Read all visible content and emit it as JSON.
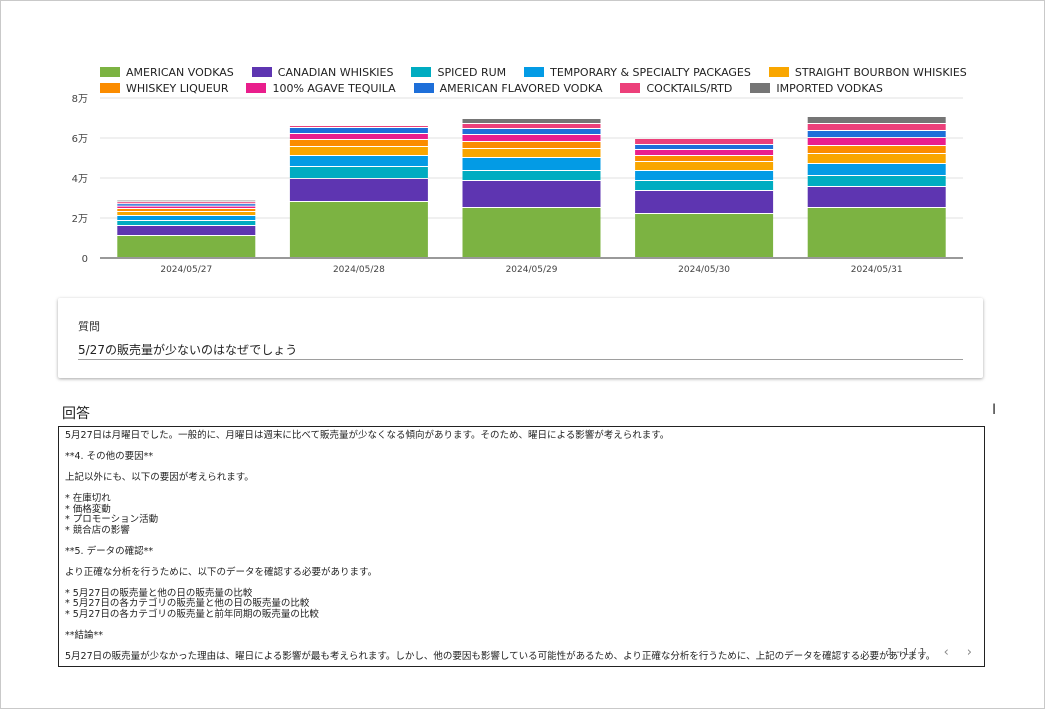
{
  "legend_rows": [
    [
      "AMERICAN VODKAS",
      "CANADIAN WHISKIES",
      "SPICED RUM",
      "TEMPORARY & SPECIALTY PACKAGES",
      "STRAIGHT BOURBON WHISKIES"
    ],
    [
      "WHISKEY LIQUEUR",
      "100% AGAVE TEQUILA",
      "AMERICAN FLAVORED VODKA",
      "COCKTAILS/RTD",
      "IMPORTED VODKAS"
    ]
  ],
  "chart_data": {
    "type": "bar",
    "stacked": true,
    "categories": [
      "2024/05/27",
      "2024/05/28",
      "2024/05/29",
      "2024/05/30",
      "2024/05/31"
    ],
    "ylim": [
      0,
      80000
    ],
    "yticks": [
      0,
      20000,
      40000,
      60000,
      80000
    ],
    "ytick_labels": [
      "0",
      "2万",
      "4万",
      "6万",
      "8万"
    ],
    "grid": true,
    "legend_position": "top",
    "series": [
      {
        "name": "AMERICAN VODKAS",
        "color": "#7cb342",
        "values": [
          11000,
          28000,
          25000,
          22000,
          25000
        ]
      },
      {
        "name": "CANADIAN WHISKIES",
        "color": "#5e35b1",
        "values": [
          5000,
          11500,
          13500,
          11500,
          10500
        ]
      },
      {
        "name": "SPICED RUM",
        "color": "#00acc1",
        "values": [
          2500,
          6000,
          5000,
          5000,
          5500
        ]
      },
      {
        "name": "TEMPORARY & SPECIALTY PACKAGES",
        "color": "#039be5",
        "values": [
          2500,
          5500,
          6500,
          5000,
          6000
        ]
      },
      {
        "name": "STRAIGHT BOURBON WHISKIES",
        "color": "#f9a600",
        "values": [
          2000,
          4500,
          4500,
          4500,
          5000
        ]
      },
      {
        "name": "WHISKEY LIQUEUR",
        "color": "#fb8c00",
        "values": [
          1500,
          3500,
          3500,
          3000,
          4000
        ]
      },
      {
        "name": "100% AGAVE TEQUILA",
        "color": "#e91e8c",
        "values": [
          1200,
          3000,
          3500,
          3000,
          4000
        ]
      },
      {
        "name": "AMERICAN FLAVORED VODKA",
        "color": "#1e6fd9",
        "values": [
          1200,
          3000,
          3000,
          2500,
          3500
        ]
      },
      {
        "name": "COCKTAILS/RTD",
        "color": "#ec407a",
        "values": [
          1000,
          1000,
          2500,
          3000,
          3500
        ]
      },
      {
        "name": "IMPORTED VODKAS",
        "color": "#757575",
        "values": [
          800,
          0,
          2500,
          0,
          3500
        ]
      }
    ]
  },
  "question": {
    "label": "質問",
    "text": "5/27の販売量が少ないのはなぜでしょう"
  },
  "answer": {
    "title": "回答",
    "body": "5月27日は月曜日でした。一般的に、月曜日は週末に比べて販売量が少なくなる傾向があります。そのため、曜日による影響が考えられます。\n\n**4. その他の要因**\n\n上記以外にも、以下の要因が考えられます。\n\n* 在庫切れ\n* 価格変動\n* プロモーション活動\n* 競合店の影響\n\n**5. データの確認**\n\nより正確な分析を行うために、以下のデータを確認する必要があります。\n\n* 5月27日の販売量と他の日の販売量の比較\n* 5月27日の各カテゴリの販売量と他の日の販売量の比較\n* 5月27日の各カテゴリの販売量と前年同期の販売量の比較\n\n**結論**\n\n5月27日の販売量が少なかった理由は、曜日による影響が最も考えられます。しかし、他の要因も影響している可能性があるため、より正確な分析を行うために、上記のデータを確認する必要があります。",
    "pager": "1 - 1 / 1",
    "prev_icon": "‹",
    "next_icon": "›"
  },
  "cursor_glyph": "I"
}
